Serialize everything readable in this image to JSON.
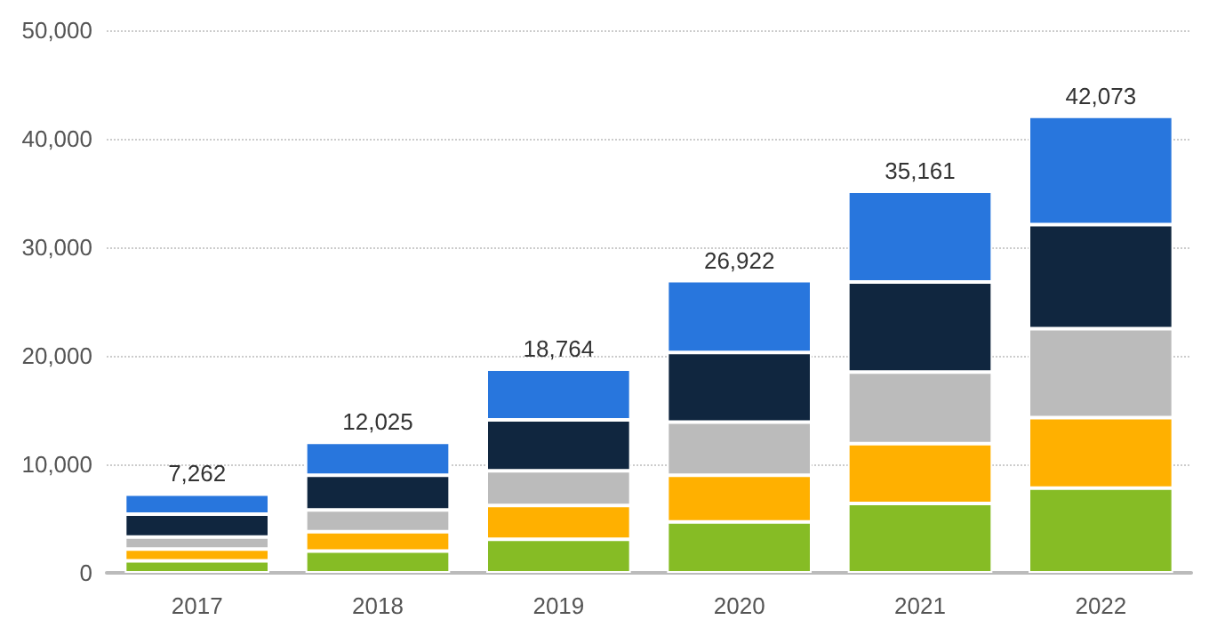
{
  "chart_data": {
    "type": "bar",
    "stacked": true,
    "categories": [
      "2017",
      "2018",
      "2019",
      "2020",
      "2021",
      "2022"
    ],
    "series": [
      {
        "color": "#86bc25",
        "values": [
          1100,
          2000,
          3100,
          4700,
          6400,
          7800
        ]
      },
      {
        "color": "#ffb000",
        "values": [
          1100,
          1800,
          3100,
          4300,
          5500,
          6500
        ]
      },
      {
        "color": "#bbbbbb",
        "values": [
          1100,
          2000,
          3200,
          4900,
          6600,
          8200
        ]
      },
      {
        "color": "#10263f",
        "values": [
          2100,
          3200,
          4700,
          6400,
          8300,
          9600
        ]
      },
      {
        "color": "#2876dd",
        "values": [
          1862,
          3025,
          4664,
          6622,
          8361,
          9973
        ]
      }
    ],
    "totals": [
      "7,262",
      "12,025",
      "18,764",
      "26,922",
      "35,161",
      "42,073"
    ],
    "ylim": [
      0,
      50000
    ],
    "yticks": [
      0,
      {
        "value": 10000,
        "label": "10,000"
      },
      {
        "value": 20000,
        "label": "20,000"
      },
      {
        "value": 30000,
        "label": "30,000"
      },
      {
        "value": 40000,
        "label": "40,000"
      },
      {
        "value": 50000,
        "label": "50,000"
      }
    ],
    "grid": "y"
  }
}
